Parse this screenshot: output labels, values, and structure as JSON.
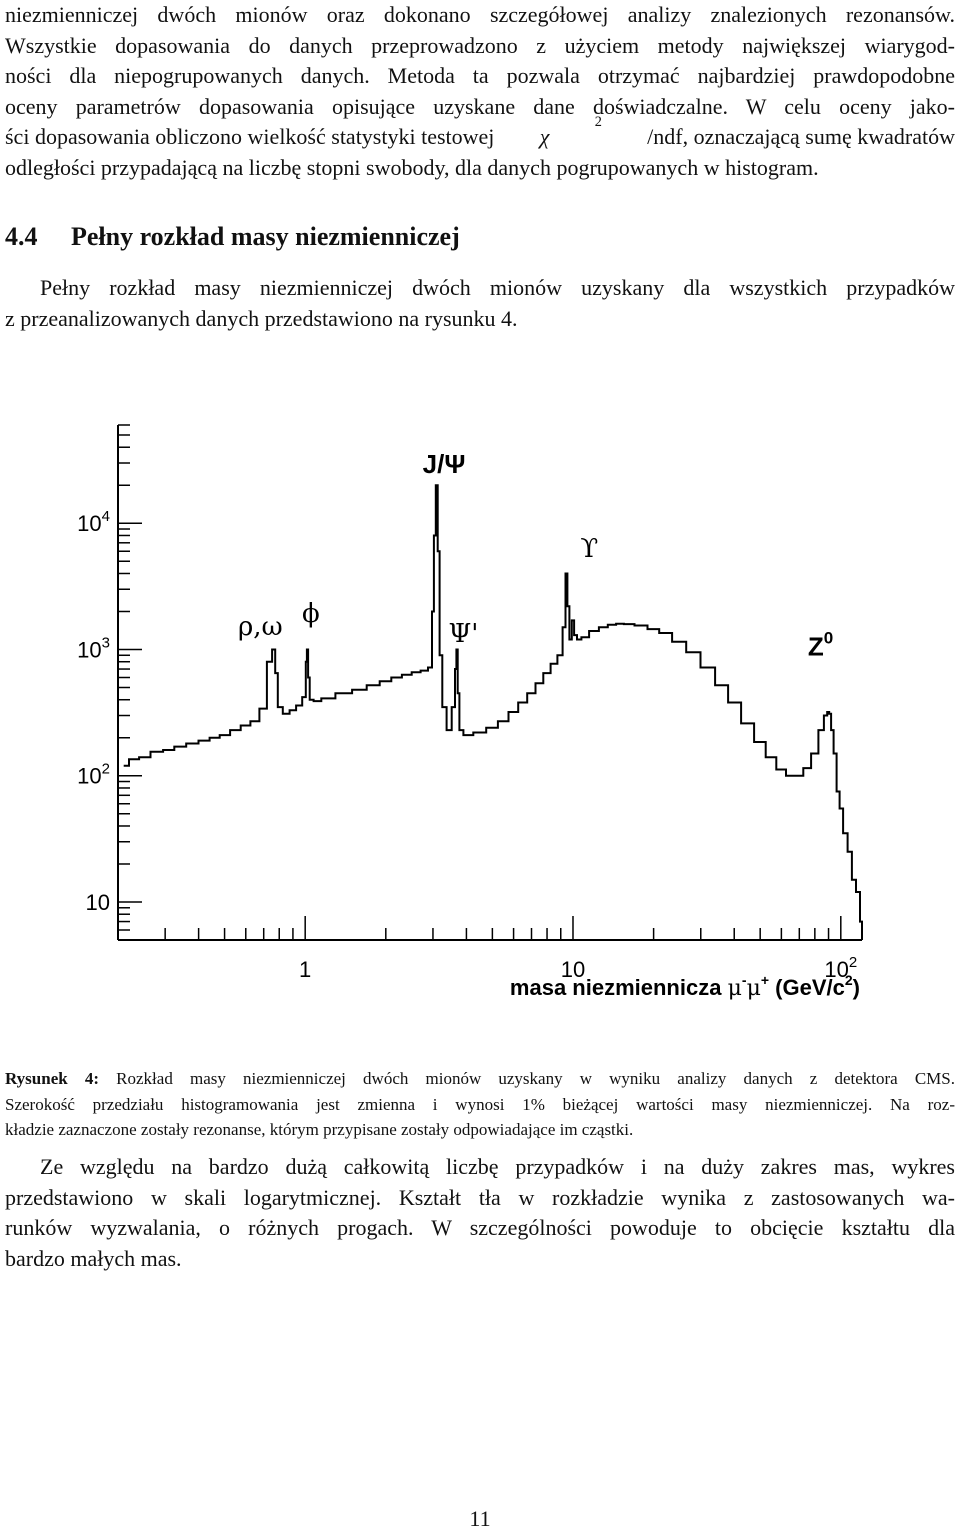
{
  "paragraph_top": {
    "lines": [
      "niezmienniczej dwóch mionów oraz dokonano szczegółowej analizy znalezionych rezonansów.",
      "Wszystkie dopasowania do danych przeprowadzono z użyciem metody największej wiarygod-",
      "ności dla niepogrupowanych danych. Metoda ta pozwala otrzymać najbardziej prawdopodobne",
      "oceny parametrów dopasowania opisujące uzyskane dane doświadczalne. W celu oceny jako-",
      "ści dopasowania obliczono wielkość statystyki testowej",
      "odległości przypadającą na liczbę stopni swobody, dla danych pogrupowanych w histogram."
    ],
    "chi_symbol": "χ",
    "chi_exp": "2",
    "line5_rest": "/ndf, oznaczającą sumę kwadratów"
  },
  "section": {
    "number": "4.4",
    "title": "Pełny rozkład masy niezmienniczej"
  },
  "paragraph_section": {
    "lines": [
      "Pełny rozkład masy niezmienniczej dwóch mionów uzyskany dla wszystkich przypadków",
      "z przeanalizowanych danych przedstawiono na rysunku 4."
    ]
  },
  "chart_data": {
    "type": "line",
    "title": "",
    "xlabel": "masa niezmiennicza μ-μ+ (GeV/c2)",
    "ylabel": "",
    "x_scale": "log",
    "y_scale": "log",
    "xlim": [
      0.2,
      120
    ],
    "ylim": [
      5,
      60000
    ],
    "x_ticks": [
      {
        "value": 1,
        "label": "1",
        "exp": ""
      },
      {
        "value": 10,
        "label": "10",
        "exp": ""
      },
      {
        "value": 100,
        "label": "10",
        "exp": "2"
      }
    ],
    "y_ticks": [
      {
        "value": 10,
        "label": "10",
        "exp": ""
      },
      {
        "value": 100,
        "label": "10",
        "exp": "2"
      },
      {
        "value": 1000,
        "label": "10",
        "exp": "3"
      },
      {
        "value": 10000,
        "label": "10",
        "exp": "4"
      }
    ],
    "xlabel_parts": {
      "pre": "masa niezmiennicza ",
      "mu1": "μ",
      "minus": "-",
      "mu2": "μ",
      "plus": "+",
      "unit": " (GeV/c",
      "unit_exp": "2",
      "unit_close": ")"
    },
    "grid": false,
    "legend": "none",
    "peak_labels": [
      {
        "text": "ρ,ω",
        "x": 0.68,
        "y": 1300
      },
      {
        "text": "ϕ",
        "x": 1.05,
        "y": 1650
      },
      {
        "text": "J/Ψ",
        "x": 3.3,
        "y": 25000
      },
      {
        "text": "Ψ'",
        "x": 3.9,
        "y": 1150
      },
      {
        "text": "ϒ",
        "x": 11.5,
        "y": 5400
      },
      {
        "text": "Z",
        "exp": "0",
        "x": 84,
        "y": 900
      }
    ],
    "series": [
      {
        "values": [
          [
            0.21,
            120
          ],
          [
            0.23,
            135
          ],
          [
            0.25,
            140
          ],
          [
            0.28,
            155
          ],
          [
            0.31,
            160
          ],
          [
            0.34,
            170
          ],
          [
            0.38,
            180
          ],
          [
            0.42,
            190
          ],
          [
            0.46,
            200
          ],
          [
            0.5,
            210
          ],
          [
            0.55,
            230
          ],
          [
            0.6,
            250
          ],
          [
            0.65,
            270
          ],
          [
            0.7,
            340
          ],
          [
            0.74,
            800
          ],
          [
            0.765,
            1000
          ],
          [
            0.78,
            650
          ],
          [
            0.8,
            350
          ],
          [
            0.85,
            310
          ],
          [
            0.9,
            330
          ],
          [
            0.95,
            360
          ],
          [
            1.0,
            420
          ],
          [
            1.01,
            800
          ],
          [
            1.02,
            1000
          ],
          [
            1.03,
            600
          ],
          [
            1.05,
            400
          ],
          [
            1.1,
            390
          ],
          [
            1.2,
            410
          ],
          [
            1.4,
            450
          ],
          [
            1.6,
            480
          ],
          [
            1.8,
            520
          ],
          [
            2.0,
            560
          ],
          [
            2.2,
            600
          ],
          [
            2.4,
            630
          ],
          [
            2.6,
            660
          ],
          [
            2.8,
            680
          ],
          [
            2.95,
            720
          ],
          [
            3.0,
            2000
          ],
          [
            3.05,
            8000
          ],
          [
            3.1,
            20000
          ],
          [
            3.15,
            6000
          ],
          [
            3.2,
            900
          ],
          [
            3.3,
            350
          ],
          [
            3.45,
            230
          ],
          [
            3.6,
            350
          ],
          [
            3.65,
            700
          ],
          [
            3.69,
            1000
          ],
          [
            3.73,
            450
          ],
          [
            3.8,
            230
          ],
          [
            4.0,
            210
          ],
          [
            4.5,
            220
          ],
          [
            5.0,
            240
          ],
          [
            5.5,
            270
          ],
          [
            6.0,
            320
          ],
          [
            6.5,
            380
          ],
          [
            7.0,
            450
          ],
          [
            7.5,
            540
          ],
          [
            8.0,
            650
          ],
          [
            8.5,
            770
          ],
          [
            9.0,
            900
          ],
          [
            9.3,
            1500
          ],
          [
            9.46,
            4000
          ],
          [
            9.6,
            2200
          ],
          [
            9.8,
            1200
          ],
          [
            10.0,
            1700
          ],
          [
            10.2,
            1300
          ],
          [
            10.5,
            1200
          ],
          [
            11.0,
            1250
          ],
          [
            12.0,
            1400
          ],
          [
            13.0,
            1500
          ],
          [
            14.0,
            1570
          ],
          [
            15.0,
            1600
          ],
          [
            16.0,
            1590
          ],
          [
            18.0,
            1550
          ],
          [
            20.0,
            1450
          ],
          [
            22.0,
            1350
          ],
          [
            25.0,
            1150
          ],
          [
            28.0,
            950
          ],
          [
            32.0,
            720
          ],
          [
            36.0,
            520
          ],
          [
            40.0,
            380
          ],
          [
            45.0,
            260
          ],
          [
            50.0,
            185
          ],
          [
            55.0,
            140
          ],
          [
            60.0,
            112
          ],
          [
            65.0,
            100
          ],
          [
            70.0,
            100
          ],
          [
            75.0,
            115
          ],
          [
            80.0,
            150
          ],
          [
            85.0,
            230
          ],
          [
            88.0,
            300
          ],
          [
            90.0,
            320
          ],
          [
            91.0,
            310
          ],
          [
            93.0,
            230
          ],
          [
            95.0,
            150
          ],
          [
            98.0,
            75
          ],
          [
            100.0,
            55
          ],
          [
            104.0,
            35
          ],
          [
            108.0,
            25
          ],
          [
            112.0,
            15
          ],
          [
            116.0,
            12
          ],
          [
            120.0,
            7
          ]
        ]
      }
    ]
  },
  "caption": {
    "prefix": "Rysunek 4:",
    "lines": [
      "Rozkład masy niezmienniczej dwóch mionów uzyskany w wyniku analizy danych z detektora CMS.",
      "Szerokość przedziału histogramowania jest zmienna i wynosi 1% bieżącej wartości masy niezmienniczej. Na roz-",
      "kładzie zaznaczone zostały rezonanse, którym przypisane zostały odpowiadające im cząstki."
    ]
  },
  "paragraph_bottom": {
    "lines": [
      "Ze względu na bardzo dużą całkowitą liczbę przypadków i na duży zakres mas, wykres",
      "przedstawiono w skali logarytmicznej. Kształt tła w rozkładzie wynika z zastosowanych wa-",
      "runków wyzwalania, o różnych progach. W szczególności powoduje to obcięcie kształtu dla",
      "bardzo małych mas."
    ]
  },
  "page_number": "11"
}
